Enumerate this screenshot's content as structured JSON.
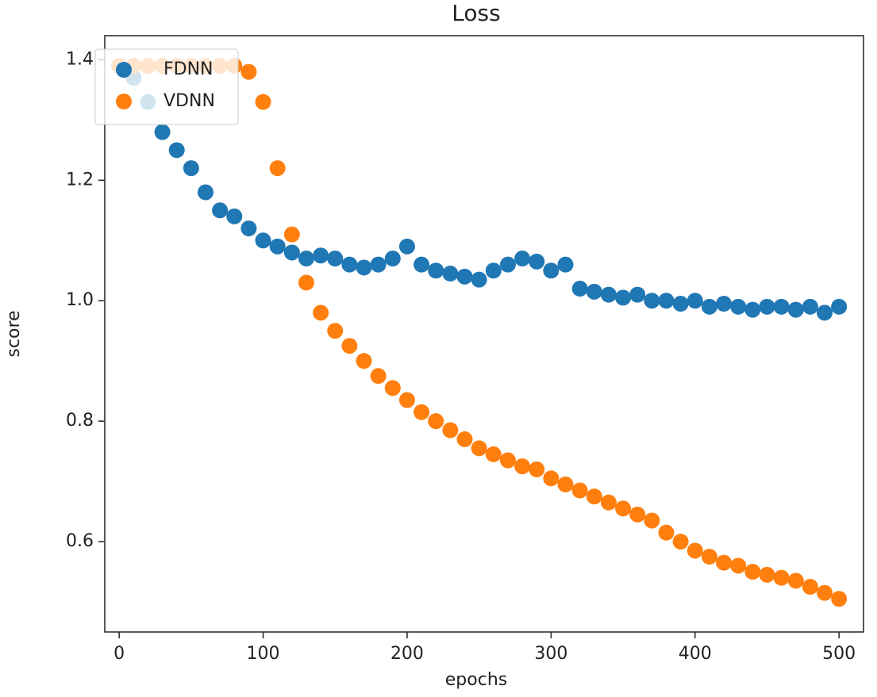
{
  "chart_data": {
    "type": "scatter",
    "title": "Loss",
    "x_label": "epochs",
    "y_label": "score",
    "x": [
      0,
      10,
      20,
      30,
      40,
      50,
      60,
      70,
      80,
      90,
      100,
      110,
      120,
      130,
      140,
      150,
      160,
      170,
      180,
      190,
      200,
      210,
      220,
      230,
      240,
      250,
      260,
      270,
      280,
      290,
      300,
      310,
      320,
      330,
      340,
      350,
      360,
      370,
      380,
      390,
      400,
      410,
      420,
      430,
      440,
      450,
      460,
      470,
      480,
      490,
      500
    ],
    "series": [
      {
        "name": "FDNN",
        "color": "#1f77b4",
        "values": [
          1.39,
          1.37,
          1.33,
          1.28,
          1.25,
          1.22,
          1.18,
          1.15,
          1.14,
          1.12,
          1.1,
          1.09,
          1.08,
          1.07,
          1.075,
          1.07,
          1.06,
          1.055,
          1.06,
          1.07,
          1.09,
          1.06,
          1.05,
          1.045,
          1.04,
          1.035,
          1.05,
          1.06,
          1.07,
          1.065,
          1.05,
          1.06,
          1.02,
          1.015,
          1.01,
          1.005,
          1.01,
          1.0,
          1.0,
          0.995,
          1.0,
          0.99,
          0.995,
          0.99,
          0.985,
          0.99,
          0.99,
          0.985,
          0.99,
          0.98,
          0.99
        ]
      },
      {
        "name": "VDNN",
        "color": "#ff7f0e",
        "values": [
          1.39,
          1.39,
          1.39,
          1.39,
          1.39,
          1.39,
          1.39,
          1.39,
          1.39,
          1.38,
          1.33,
          1.22,
          1.11,
          1.03,
          0.98,
          0.95,
          0.925,
          0.9,
          0.875,
          0.855,
          0.835,
          0.815,
          0.8,
          0.785,
          0.77,
          0.755,
          0.745,
          0.735,
          0.725,
          0.72,
          0.705,
          0.695,
          0.685,
          0.675,
          0.665,
          0.655,
          0.645,
          0.635,
          0.615,
          0.6,
          0.585,
          0.575,
          0.565,
          0.56,
          0.55,
          0.545,
          0.54,
          0.535,
          0.525,
          0.515,
          0.505
        ]
      }
    ],
    "xlim": [
      -10,
      517
    ],
    "xticks": [
      0,
      100,
      200,
      300,
      400,
      500
    ],
    "ylim": [
      0.45,
      1.44
    ],
    "yticks": [
      0.6,
      0.8,
      {
        "value": 1,
        "label": "1.0"
      },
      1.2,
      1.4
    ],
    "legend": "upper left"
  }
}
